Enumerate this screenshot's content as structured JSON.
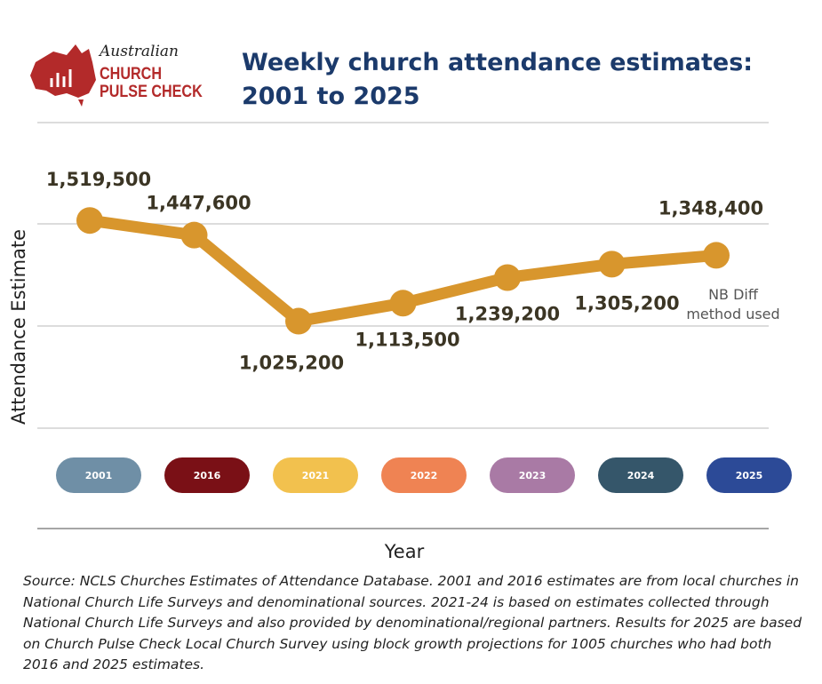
{
  "logo": {
    "top": "Australian",
    "line1": "CHURCH",
    "line2": "PULSE CHECK"
  },
  "chart_data": {
    "type": "line",
    "title": "Weekly church attendance estimates: 2001 to 2025",
    "ylabel": "Attendance Estimate",
    "xlabel": "Year",
    "categories": [
      "2001",
      "2016",
      "2021",
      "2022",
      "2023",
      "2024",
      "2025"
    ],
    "category_colors": [
      "#6f8fa6",
      "#7a1016",
      "#f2c14e",
      "#ef8353",
      "#a97aa5",
      "#35566a",
      "#2c4a97"
    ],
    "values": [
      1519500,
      1447600,
      1025200,
      1113500,
      1239200,
      1305200,
      1348400
    ],
    "value_labels": [
      "1,519,500",
      "1,447,600",
      "1,025,200",
      "1,113,500",
      "1,239,200",
      "1,305,200",
      "1,348,400"
    ],
    "color": "#d8962d",
    "ylim": [
      500000,
      2000000
    ],
    "annotation": "NB Diff method used",
    "source": "Source: NCLS Churches Estimates of Attendance Database. 2001 and 2016 estimates are from local churches in National Church Life Surveys and denominational sources. 2021-24 is based on estimates collected through National Church Life Surveys and also provided by denominational/regional partners. Results for 2025 are based on Church Pulse Check Local Church Survey using block growth projections for 1005 churches who had both 2016 and 2025 estimates."
  }
}
